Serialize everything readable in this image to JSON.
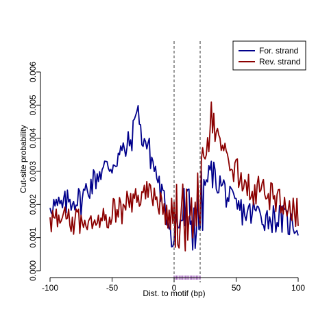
{
  "chart_data": {
    "type": "line",
    "title": "",
    "xlabel": "Dist. to motif (bp)",
    "ylabel": "Cut-site probability",
    "xlim": [
      -100,
      100
    ],
    "ylim": [
      0,
      0.006
    ],
    "x_ticks": [
      -100,
      -50,
      0,
      50,
      100
    ],
    "y_ticks": [
      0.0,
      0.001,
      0.002,
      0.003,
      0.004,
      0.005,
      0.006
    ],
    "x_tick_labels": [
      "-100",
      "-50",
      "0",
      "50",
      "100"
    ],
    "y_tick_labels": [
      "0.000",
      "0.001",
      "0.002",
      "0.003",
      "0.004",
      "0.005",
      "0.006"
    ],
    "grid": false,
    "legend_position": "top-right",
    "motif_boundaries": [
      0,
      21
    ],
    "motif_color": "#9b59b6",
    "x_start": -100,
    "x_end": 100,
    "series": [
      {
        "name": "For. strand",
        "color": "#00008b",
        "knots": [
          [
            -100,
            0.0021
          ],
          [
            -95,
            0.0019
          ],
          [
            -90,
            0.0019
          ],
          [
            -85,
            0.0021
          ],
          [
            -80,
            0.0022
          ],
          [
            -75,
            0.0021
          ],
          [
            -70,
            0.0025
          ],
          [
            -65,
            0.0027
          ],
          [
            -60,
            0.003
          ],
          [
            -55,
            0.0031
          ],
          [
            -50,
            0.0032
          ],
          [
            -45,
            0.0035
          ],
          [
            -40,
            0.0036
          ],
          [
            -35,
            0.0039
          ],
          [
            -32,
            0.0043
          ],
          [
            -30,
            0.0052
          ],
          [
            -27,
            0.0041
          ],
          [
            -24,
            0.004
          ],
          [
            -20,
            0.0036
          ],
          [
            -15,
            0.003
          ],
          [
            -10,
            0.0023
          ],
          [
            -5,
            0.0016
          ],
          [
            0,
            0.0012
          ],
          [
            5,
            0.0016
          ],
          [
            10,
            0.0017
          ],
          [
            15,
            0.0015
          ],
          [
            20,
            0.0015
          ],
          [
            25,
            0.0026
          ],
          [
            30,
            0.003
          ],
          [
            35,
            0.0027
          ],
          [
            40,
            0.0025
          ],
          [
            45,
            0.0021
          ],
          [
            50,
            0.0019
          ],
          [
            55,
            0.0018
          ],
          [
            60,
            0.0017
          ],
          [
            65,
            0.0018
          ],
          [
            70,
            0.0017
          ],
          [
            75,
            0.0016
          ],
          [
            80,
            0.0016
          ],
          [
            85,
            0.0016
          ],
          [
            90,
            0.0015
          ],
          [
            95,
            0.0014
          ],
          [
            100,
            0.0014
          ]
        ]
      },
      {
        "name": "Rev. strand",
        "color": "#8b0000",
        "knots": [
          [
            -100,
            0.0016
          ],
          [
            -95,
            0.0015
          ],
          [
            -90,
            0.0015
          ],
          [
            -85,
            0.0015
          ],
          [
            -80,
            0.0015
          ],
          [
            -75,
            0.0015
          ],
          [
            -70,
            0.0016
          ],
          [
            -65,
            0.0016
          ],
          [
            -60,
            0.0017
          ],
          [
            -55,
            0.0017
          ],
          [
            -50,
            0.0018
          ],
          [
            -45,
            0.0018
          ],
          [
            -40,
            0.0019
          ],
          [
            -35,
            0.0021
          ],
          [
            -30,
            0.0022
          ],
          [
            -25,
            0.0023
          ],
          [
            -20,
            0.0024
          ],
          [
            -15,
            0.0022
          ],
          [
            -10,
            0.002
          ],
          [
            -5,
            0.0017
          ],
          [
            0,
            0.0014
          ],
          [
            5,
            0.0017
          ],
          [
            10,
            0.0016
          ],
          [
            15,
            0.0018
          ],
          [
            20,
            0.002
          ],
          [
            24,
            0.003
          ],
          [
            27,
            0.0036
          ],
          [
            30,
            0.0047
          ],
          [
            33,
            0.0041
          ],
          [
            36,
            0.0038
          ],
          [
            40,
            0.0035
          ],
          [
            45,
            0.0033
          ],
          [
            50,
            0.003
          ],
          [
            55,
            0.0028
          ],
          [
            60,
            0.0025
          ],
          [
            65,
            0.0024
          ],
          [
            70,
            0.0024
          ],
          [
            75,
            0.0023
          ],
          [
            80,
            0.0022
          ],
          [
            85,
            0.0021
          ],
          [
            90,
            0.002
          ],
          [
            95,
            0.0019
          ],
          [
            100,
            0.0017
          ]
        ]
      }
    ]
  }
}
